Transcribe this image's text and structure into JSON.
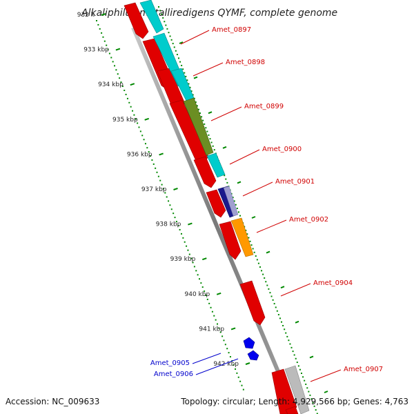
{
  "title": "Alkaliphilus metalliredigens QYMF, complete genome",
  "footer": {
    "accession": "Accession: NC_009633",
    "summary": "Topology: circular; Length: 4,929,566 bp; Genes: 4,763"
  },
  "ruler": {
    "ticks": [
      {
        "label": "932 k",
        "kbp": 932
      },
      {
        "label": "933 kbp",
        "kbp": 933
      },
      {
        "label": "934 kbp",
        "kbp": 934
      },
      {
        "label": "935 kbp",
        "kbp": 935
      },
      {
        "label": "936 kbp",
        "kbp": 936
      },
      {
        "label": "937 kbp",
        "kbp": 937
      },
      {
        "label": "938 kbp",
        "kbp": 938
      },
      {
        "label": "939 kbp",
        "kbp": 939
      },
      {
        "label": "940 kbp",
        "kbp": 940
      },
      {
        "label": "941 kbp",
        "kbp": 941
      },
      {
        "label": "942 kbp",
        "kbp": 942
      }
    ]
  },
  "genes": [
    {
      "label": "Amet_0897",
      "color": "#d00000",
      "strand": "forward"
    },
    {
      "label": "Amet_0898",
      "color": "#d00000",
      "strand": "forward"
    },
    {
      "label": "Amet_0899",
      "color": "#d00000",
      "strand": "forward"
    },
    {
      "label": "Amet_0900",
      "color": "#d00000",
      "strand": "forward"
    },
    {
      "label": "Amet_0901",
      "color": "#d00000",
      "strand": "forward"
    },
    {
      "label": "Amet_0902",
      "color": "#d00000",
      "strand": "forward"
    },
    {
      "label": "Amet_0904",
      "color": "#d00000",
      "strand": "forward"
    },
    {
      "label": "Amet_0905",
      "color": "#0000cc",
      "strand": "reverse"
    },
    {
      "label": "Amet_0906",
      "color": "#0000cc",
      "strand": "reverse"
    },
    {
      "label": "Amet_0907",
      "color": "#d00000",
      "strand": "forward"
    }
  ],
  "colors": {
    "cds_red": "#e00000",
    "cog_cyan": "#00cccc",
    "cog_olive": "#6b8e23",
    "cog_navy": "#1a1a8c",
    "cog_orange": "#ff9900",
    "cog_gray": "#bbbbbb",
    "reverse_blue": "#0000ee",
    "tick_green": "#008800",
    "backbone": "#888888"
  }
}
